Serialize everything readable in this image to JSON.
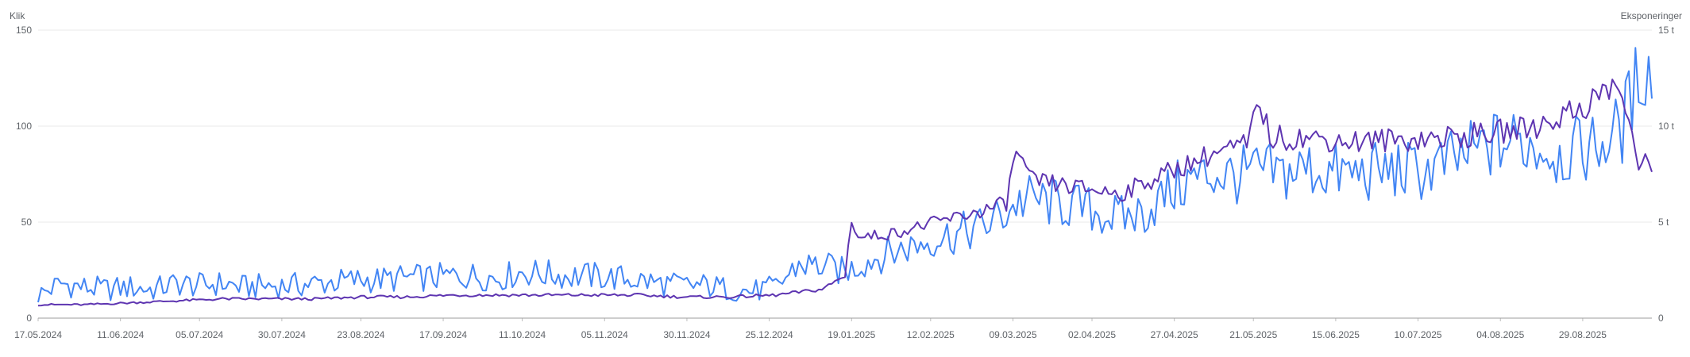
{
  "chart_data": {
    "type": "line",
    "y_left_label": "Klik",
    "y_right_label": "Eksponeringer",
    "y_left_ticks": [
      {
        "value": 0,
        "label": "0"
      },
      {
        "value": 50,
        "label": "50"
      },
      {
        "value": 100,
        "label": "100"
      },
      {
        "value": 150,
        "label": "150"
      }
    ],
    "y_right_ticks": [
      {
        "value": 0,
        "label": "0"
      },
      {
        "value": 5,
        "label": "5 t"
      },
      {
        "value": 10,
        "label": "10 t"
      },
      {
        "value": 15,
        "label": "15 t"
      }
    ],
    "y_left_range": [
      0,
      150
    ],
    "y_right_range": [
      0,
      15
    ],
    "x_range": [
      "2024-05-17",
      "2025-09-19"
    ],
    "x_ticks": [
      "17.05.2024",
      "11.06.2024",
      "05.07.2024",
      "30.07.2024",
      "23.08.2024",
      "17.09.2024",
      "11.10.2024",
      "05.11.2024",
      "30.11.2024",
      "25.12.2024",
      "19.01.2025",
      "12.02.2025",
      "09.03.2025",
      "02.04.2025",
      "27.04.2025",
      "21.05.2025",
      "15.06.2025",
      "10.07.2025",
      "04.08.2025",
      "29.08.2025"
    ],
    "grid": true,
    "series": [
      {
        "axis": "left",
        "color": "#4285f4",
        "points": [
          [
            "2024-05-17",
            12
          ],
          [
            "2024-05-24",
            18
          ],
          [
            "2024-05-31",
            16
          ],
          [
            "2024-06-07",
            15
          ],
          [
            "2024-06-14",
            16
          ],
          [
            "2024-06-21",
            15
          ],
          [
            "2024-06-28",
            18
          ],
          [
            "2024-07-05",
            17
          ],
          [
            "2024-07-12",
            18
          ],
          [
            "2024-07-19",
            16
          ],
          [
            "2024-07-26",
            17
          ],
          [
            "2024-08-02",
            17
          ],
          [
            "2024-08-09",
            18
          ],
          [
            "2024-08-16",
            19
          ],
          [
            "2024-08-23",
            20
          ],
          [
            "2024-08-30",
            20
          ],
          [
            "2024-09-06",
            21
          ],
          [
            "2024-09-13",
            21
          ],
          [
            "2024-09-20",
            22
          ],
          [
            "2024-09-27",
            22
          ],
          [
            "2024-10-04",
            21
          ],
          [
            "2024-10-11",
            24
          ],
          [
            "2024-10-18",
            23
          ],
          [
            "2024-10-25",
            22
          ],
          [
            "2024-11-01",
            22
          ],
          [
            "2024-11-08",
            21
          ],
          [
            "2024-11-15",
            20
          ],
          [
            "2024-11-22",
            18
          ],
          [
            "2024-11-29",
            17
          ],
          [
            "2024-12-06",
            17
          ],
          [
            "2024-12-13",
            15
          ],
          [
            "2024-12-20",
            14
          ],
          [
            "2024-12-27",
            16
          ],
          [
            "2025-01-03",
            28
          ],
          [
            "2025-01-10",
            27
          ],
          [
            "2025-01-17",
            24
          ],
          [
            "2025-01-24",
            30
          ],
          [
            "2025-01-31",
            34
          ],
          [
            "2025-02-07",
            38
          ],
          [
            "2025-02-14",
            42
          ],
          [
            "2025-02-21",
            44
          ],
          [
            "2025-02-28",
            48
          ],
          [
            "2025-03-07",
            55
          ],
          [
            "2025-03-10",
            60
          ],
          [
            "2025-03-14",
            62
          ],
          [
            "2025-03-21",
            60
          ],
          [
            "2025-03-28",
            58
          ],
          [
            "2025-04-04",
            55
          ],
          [
            "2025-04-11",
            52
          ],
          [
            "2025-04-18",
            55
          ],
          [
            "2025-04-25",
            65
          ],
          [
            "2025-05-02",
            72
          ],
          [
            "2025-05-09",
            75
          ],
          [
            "2025-05-16",
            74
          ],
          [
            "2025-05-23",
            76
          ],
          [
            "2025-05-30",
            75
          ],
          [
            "2025-06-06",
            78
          ],
          [
            "2025-06-13",
            76
          ],
          [
            "2025-06-20",
            75
          ],
          [
            "2025-06-27",
            76
          ],
          [
            "2025-07-04",
            77
          ],
          [
            "2025-07-11",
            76
          ],
          [
            "2025-07-18",
            80
          ],
          [
            "2025-07-25",
            85
          ],
          [
            "2025-08-01",
            90
          ],
          [
            "2025-08-08",
            92
          ],
          [
            "2025-08-15",
            90
          ],
          [
            "2025-08-22",
            85
          ],
          [
            "2025-08-29",
            88
          ],
          [
            "2025-09-05",
            92
          ],
          [
            "2025-09-10",
            100
          ],
          [
            "2025-09-13",
            115
          ],
          [
            "2025-09-16",
            132
          ],
          [
            "2025-09-19",
            126
          ]
        ]
      },
      {
        "axis": "right",
        "color": "#5e35b1",
        "points": [
          [
            "2024-05-17",
            0.7
          ],
          [
            "2024-05-31",
            0.7
          ],
          [
            "2024-06-14",
            0.8
          ],
          [
            "2024-06-28",
            0.9
          ],
          [
            "2024-07-12",
            1.0
          ],
          [
            "2024-07-26",
            1.0
          ],
          [
            "2024-08-09",
            1.0
          ],
          [
            "2024-08-23",
            1.1
          ],
          [
            "2024-09-06",
            1.1
          ],
          [
            "2024-09-20",
            1.2
          ],
          [
            "2024-10-04",
            1.2
          ],
          [
            "2024-10-18",
            1.2
          ],
          [
            "2024-11-01",
            1.2
          ],
          [
            "2024-11-15",
            1.2
          ],
          [
            "2024-11-29",
            1.1
          ],
          [
            "2024-12-13",
            1.1
          ],
          [
            "2024-12-27",
            1.2
          ],
          [
            "2025-01-10",
            1.5
          ],
          [
            "2025-01-17",
            2.2
          ],
          [
            "2025-01-19",
            5.2
          ],
          [
            "2025-01-21",
            4.2
          ],
          [
            "2025-01-31",
            4.4
          ],
          [
            "2025-02-14",
            5.0
          ],
          [
            "2025-02-28",
            5.6
          ],
          [
            "2025-03-07",
            6.0
          ],
          [
            "2025-03-10",
            8.8
          ],
          [
            "2025-03-14",
            7.2
          ],
          [
            "2025-03-28",
            6.8
          ],
          [
            "2025-04-11",
            6.5
          ],
          [
            "2025-04-25",
            7.6
          ],
          [
            "2025-05-09",
            8.6
          ],
          [
            "2025-05-19",
            9.0
          ],
          [
            "2025-05-23",
            11.3
          ],
          [
            "2025-05-26",
            9.4
          ],
          [
            "2025-06-06",
            9.4
          ],
          [
            "2025-06-20",
            9.2
          ],
          [
            "2025-07-04",
            9.3
          ],
          [
            "2025-07-18",
            9.4
          ],
          [
            "2025-08-01",
            9.6
          ],
          [
            "2025-08-15",
            10.0
          ],
          [
            "2025-08-29",
            11.0
          ],
          [
            "2025-09-08",
            12.2
          ],
          [
            "2025-09-12",
            10.5
          ],
          [
            "2025-09-15",
            7.3
          ],
          [
            "2025-09-17",
            8.6
          ],
          [
            "2025-09-19",
            7.8
          ]
        ]
      }
    ]
  }
}
